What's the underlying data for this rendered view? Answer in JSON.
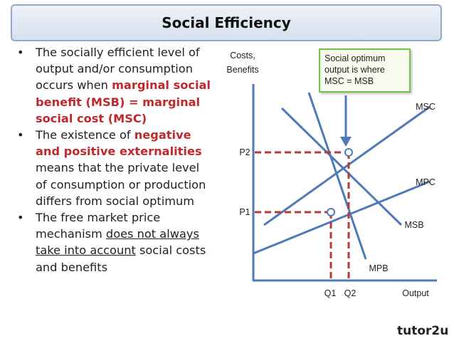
{
  "title": "Social Efficiency",
  "bullets": [
    {
      "parts": [
        {
          "t": "The socially efficient level of output and/or consumption occurs when ",
          "s": "normal"
        },
        {
          "t": "marginal social benefit (MSB) = marginal social cost (MSC)",
          "s": "red"
        }
      ]
    },
    {
      "parts": [
        {
          "t": "The existence of ",
          "s": "normal"
        },
        {
          "t": "negative and positive externalities",
          "s": "red"
        },
        {
          "t": " means that the private level of consumption or production differs from social optimum",
          "s": "normal"
        }
      ]
    },
    {
      "parts": [
        {
          "t": "The free market price mechanism ",
          "s": "normal"
        },
        {
          "t": "does not always take into account",
          "s": "underline"
        },
        {
          "t": " social costs and benefits",
          "s": "normal"
        }
      ]
    }
  ],
  "diagram": {
    "y_axis_label_line1": "Costs,",
    "y_axis_label_line2": "Benefits",
    "x_axis_label": "Output",
    "callout_line1": "Social optimum",
    "callout_line2": "output is where",
    "callout_line3": "MSC = MSB",
    "curves": {
      "msc": "MSC",
      "mpc": "MPC",
      "msb": "MSB",
      "mpb": "MPB"
    },
    "price_labels": {
      "p2": "P2",
      "p1": "P1"
    },
    "quantity_labels": {
      "q1": "Q1",
      "q2": "Q2"
    },
    "colors": {
      "curve": "#4f7ab8",
      "dashed": "#b73a34",
      "callout_border": "#7cc242"
    }
  },
  "logo": {
    "text": "tutor2u"
  }
}
